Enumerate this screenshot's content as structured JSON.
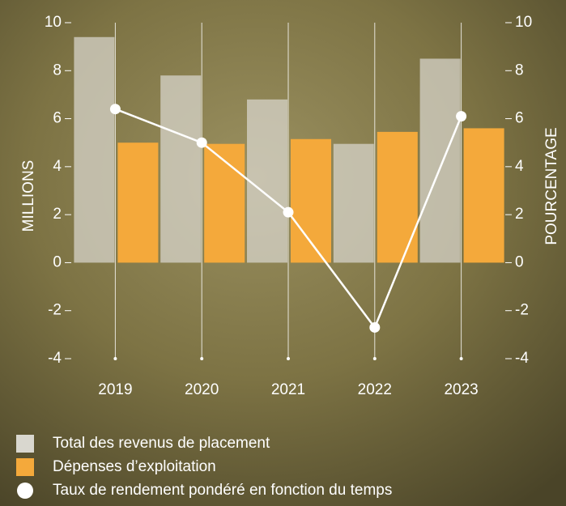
{
  "chart_data": {
    "type": "bar",
    "categories": [
      "2019",
      "2020",
      "2021",
      "2022",
      "2023"
    ],
    "y_label": "MILLIONS",
    "y2_label": "POURCENTAGE",
    "ylim": [
      -4,
      10
    ],
    "yticks": [
      -4,
      -2,
      0,
      2,
      4,
      6,
      8,
      10
    ],
    "y2lim": [
      -4,
      10
    ],
    "y2ticks": [
      -4,
      -2,
      0,
      2,
      4,
      6,
      8,
      10
    ],
    "series": [
      {
        "name": "Total des revenus de placement",
        "type": "bar",
        "color": "#d9d7cf",
        "values": [
          9.4,
          7.8,
          6.8,
          4.95,
          8.5
        ]
      },
      {
        "name": "Dépenses d’exploitation",
        "type": "bar",
        "color": "#f4a93b",
        "values": [
          5.0,
          4.95,
          5.15,
          5.45,
          5.6
        ]
      },
      {
        "name": "Taux de rendement pondéré en fonction du temps",
        "type": "line",
        "axis": "y2",
        "color": "#ffffff",
        "values": [
          6.4,
          5.0,
          2.1,
          -2.7,
          6.1
        ]
      }
    ],
    "legend": "bottom-left"
  }
}
